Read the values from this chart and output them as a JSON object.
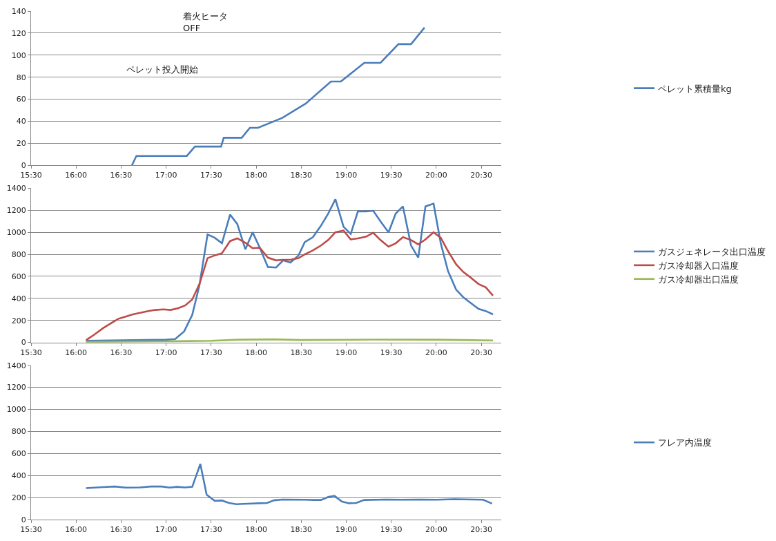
{
  "chart_data": [
    {
      "type": "line",
      "x": [
        16.62,
        16.67,
        17.23,
        17.32,
        17.61,
        17.64,
        17.84,
        17.93,
        18.02,
        18.29,
        18.55,
        18.83,
        18.94,
        19.2,
        19.38,
        19.58,
        19.72,
        19.87
      ],
      "series": [
        {
          "name": "ペレット累積量kg",
          "color": "#4a7ebb",
          "values": [
            0,
            8.5,
            8.5,
            17,
            17,
            25,
            25,
            34,
            34,
            43,
            56,
            76,
            76,
            93,
            93,
            110,
            110,
            125
          ]
        }
      ],
      "annotations": [
        "着火ヒータ\nOFF",
        "ペレット投入開始"
      ],
      "xlim": [
        15.5,
        20.72
      ],
      "xticks": [
        {
          "value": 15.5,
          "label": "15:30"
        },
        {
          "value": 16,
          "label": "16:00"
        },
        {
          "value": 16.5,
          "label": "16:30"
        },
        {
          "value": 17,
          "label": "17:00"
        },
        {
          "value": 17.5,
          "label": "17:30"
        },
        {
          "value": 18,
          "label": "18:00"
        },
        {
          "value": 18.5,
          "label": "18:30"
        },
        {
          "value": 19,
          "label": "19:00"
        },
        {
          "value": 19.5,
          "label": "19:30"
        },
        {
          "value": 20,
          "label": "20:00"
        },
        {
          "value": 20.5,
          "label": "20:30"
        }
      ],
      "ylim": [
        0,
        140
      ],
      "yticks": [
        0,
        20,
        40,
        60,
        80,
        100,
        120,
        140
      ],
      "grid": "y",
      "legend": "right",
      "marker": "none",
      "line_style": "solid"
    },
    {
      "type": "line",
      "series": [
        {
          "name": "ガスジェネレータ出口温度",
          "color": "#4a7ebb",
          "x": [
            16.11,
            16.5,
            17.0,
            17.1,
            17.2,
            17.29,
            17.37,
            17.46,
            17.54,
            17.62,
            17.71,
            17.79,
            17.88,
            17.96,
            18.04,
            18.13,
            18.22,
            18.3,
            18.38,
            18.47,
            18.54,
            18.63,
            18.72,
            18.8,
            18.88,
            18.97,
            19.05,
            19.13,
            19.22,
            19.3,
            19.38,
            19.47,
            19.55,
            19.63,
            19.72,
            19.8,
            19.88,
            19.97,
            20.05,
            20.13,
            20.22,
            20.3,
            20.38,
            20.47,
            20.55,
            20.63
          ],
          "values": [
            15,
            20,
            25,
            30,
            100,
            250,
            520,
            980,
            950,
            900,
            1160,
            1075,
            845,
            1000,
            860,
            685,
            680,
            745,
            725,
            790,
            910,
            955,
            1060,
            1170,
            1300,
            1050,
            985,
            1190,
            1190,
            1195,
            1100,
            1000,
            1170,
            1235,
            880,
            770,
            1235,
            1260,
            900,
            650,
            480,
            410,
            360,
            305,
            285,
            255
          ]
        },
        {
          "name": "ガス冷却器入口温度",
          "color": "#be4b48",
          "x": [
            16.11,
            16.2,
            16.3,
            16.4,
            16.47,
            16.55,
            16.63,
            16.72,
            16.8,
            16.88,
            16.97,
            17.05,
            17.13,
            17.21,
            17.29,
            17.37,
            17.46,
            17.54,
            17.62,
            17.71,
            17.79,
            17.88,
            17.96,
            18.04,
            18.13,
            18.22,
            18.3,
            18.38,
            18.47,
            18.54,
            18.63,
            18.72,
            18.8,
            18.88,
            18.97,
            19.05,
            19.13,
            19.22,
            19.3,
            19.38,
            19.47,
            19.55,
            19.63,
            19.72,
            19.8,
            19.88,
            19.97,
            20.05,
            20.13,
            20.22,
            20.3,
            20.38,
            20.47,
            20.55,
            20.63
          ],
          "values": [
            20,
            70,
            130,
            180,
            215,
            235,
            255,
            270,
            285,
            295,
            300,
            295,
            310,
            335,
            390,
            530,
            765,
            790,
            810,
            920,
            945,
            905,
            855,
            860,
            770,
            745,
            750,
            750,
            765,
            800,
            835,
            880,
            930,
            1000,
            1015,
            935,
            945,
            960,
            995,
            930,
            870,
            900,
            955,
            930,
            890,
            935,
            1000,
            950,
            830,
            710,
            640,
            590,
            530,
            500,
            425
          ]
        },
        {
          "name": "ガス冷却器出口温度",
          "color": "#98b954",
          "x": [
            16.11,
            17.0,
            17.5,
            17.8,
            18.2,
            18.5,
            19.0,
            19.3,
            20.0,
            20.3,
            20.63
          ],
          "values": [
            5,
            10,
            15,
            25,
            28,
            22,
            24,
            26,
            25,
            22,
            18
          ]
        }
      ],
      "xlim": [
        15.5,
        20.72
      ],
      "xticks": [
        {
          "value": 15.5,
          "label": "15:30"
        },
        {
          "value": 16,
          "label": "16:00"
        },
        {
          "value": 16.5,
          "label": "16:30"
        },
        {
          "value": 17,
          "label": "17:00"
        },
        {
          "value": 17.5,
          "label": "17:30"
        },
        {
          "value": 18,
          "label": "18:00"
        },
        {
          "value": 18.5,
          "label": "18:30"
        },
        {
          "value": 19,
          "label": "19:00"
        },
        {
          "value": 19.5,
          "label": "19:30"
        },
        {
          "value": 20,
          "label": "20:00"
        },
        {
          "value": 20.5,
          "label": "20:30"
        }
      ],
      "ylim": [
        0,
        1400
      ],
      "yticks": [
        0,
        200,
        400,
        600,
        800,
        1000,
        1200,
        1400
      ],
      "grid": "y",
      "legend": "right",
      "marker": "none",
      "line_style": "solid"
    },
    {
      "type": "line",
      "x": [
        16.11,
        16.3,
        16.43,
        16.55,
        16.71,
        16.83,
        16.95,
        17.04,
        17.12,
        17.21,
        17.29,
        17.38,
        17.45,
        17.54,
        17.62,
        17.7,
        17.78,
        17.86,
        18.04,
        18.12,
        18.2,
        18.29,
        18.54,
        18.64,
        18.72,
        18.8,
        18.87,
        18.95,
        19.03,
        19.11,
        19.2,
        19.45,
        19.61,
        19.81,
        20.01,
        20.2,
        20.52,
        20.62
      ],
      "series": [
        {
          "name": "フレア内温度",
          "color": "#4a7ebb",
          "values": [
            285,
            295,
            300,
            290,
            292,
            300,
            300,
            290,
            297,
            292,
            297,
            505,
            225,
            170,
            173,
            150,
            140,
            143,
            148,
            150,
            175,
            182,
            180,
            178,
            178,
            205,
            215,
            165,
            148,
            150,
            178,
            182,
            180,
            182,
            180,
            185,
            180,
            145
          ]
        }
      ],
      "xlim": [
        15.5,
        20.72
      ],
      "xticks": [
        {
          "value": 15.5,
          "label": "15:30"
        },
        {
          "value": 16,
          "label": "16:00"
        },
        {
          "value": 16.5,
          "label": "16:30"
        },
        {
          "value": 17,
          "label": "17:00"
        },
        {
          "value": 17.5,
          "label": "17:30"
        },
        {
          "value": 18,
          "label": "18:00"
        },
        {
          "value": 18.5,
          "label": "18:30"
        },
        {
          "value": 19,
          "label": "19:00"
        },
        {
          "value": 19.5,
          "label": "19:30"
        },
        {
          "value": 20,
          "label": "20:00"
        },
        {
          "value": 20.5,
          "label": "20:30"
        }
      ],
      "ylim": [
        0,
        1400
      ],
      "yticks": [
        0,
        200,
        400,
        600,
        800,
        1000,
        1200,
        1400
      ],
      "grid": "y",
      "legend": "right",
      "marker": "none",
      "line_style": "solid"
    }
  ]
}
